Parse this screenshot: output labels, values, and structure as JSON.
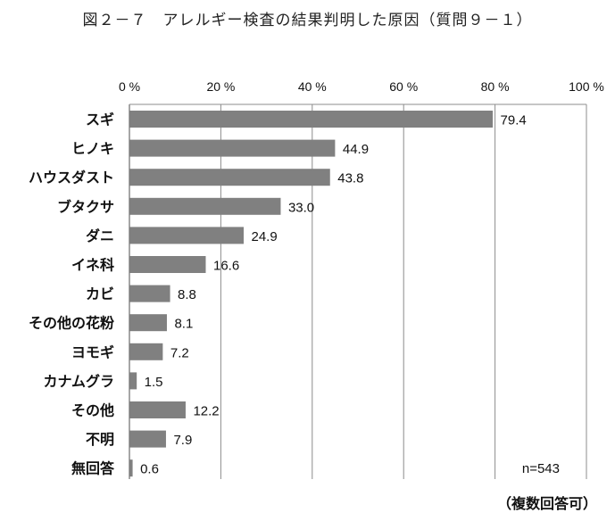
{
  "figure_title": "図２－７　アレルギー検査の結果判明した原因（質問９－１）",
  "footer_note": "（複数回答可）",
  "chart_data": {
    "type": "bar",
    "orientation": "horizontal",
    "categories": [
      "スギ",
      "ヒノキ",
      "ハウスダスト",
      "ブタクサ",
      "ダニ",
      "イネ科",
      "カビ",
      "その他の花粉",
      "ヨモギ",
      "カナムグラ",
      "その他",
      "不明",
      "無回答"
    ],
    "values": [
      79.4,
      44.9,
      43.8,
      33.0,
      24.9,
      16.6,
      8.8,
      8.1,
      7.2,
      1.5,
      12.2,
      7.9,
      0.6
    ],
    "value_labels": [
      "79.4",
      "44.9",
      "43.8",
      "33.0",
      "24.9",
      "16.6",
      "8.8",
      "8.1",
      "7.2",
      "1.5",
      "12.2",
      "7.9",
      "0.6"
    ],
    "x_ticks": [
      "0 %",
      "20 %",
      "40 %",
      "60 %",
      "80 %",
      "100 %"
    ],
    "xlim": [
      0,
      100
    ],
    "x_axis_position": "top",
    "grid": true,
    "sample_note": "n=543",
    "bar_color": "#808080"
  }
}
